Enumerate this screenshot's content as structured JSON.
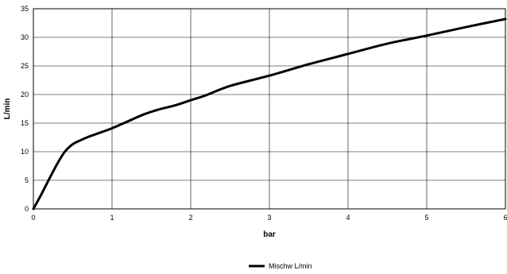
{
  "chart_data": {
    "type": "line",
    "title": "",
    "xlabel": "bar",
    "ylabel": "L/min",
    "xlim": [
      0,
      6
    ],
    "ylim": [
      0,
      35
    ],
    "xticks": [
      0,
      1,
      2,
      3,
      4,
      5,
      6
    ],
    "yticks": [
      0,
      5,
      10,
      15,
      20,
      25,
      30,
      35
    ],
    "grid": true,
    "legend_position": "bottom-center",
    "series": [
      {
        "name": "Mischw L/min",
        "color": "#000000",
        "x": [
          0,
          0.1,
          0.2,
          0.3,
          0.4,
          0.5,
          0.6,
          0.7,
          0.8,
          1.0,
          1.2,
          1.4,
          1.6,
          1.8,
          2.0,
          2.2,
          2.5,
          3.0,
          3.5,
          4.0,
          4.5,
          5.0,
          5.5,
          6.0
        ],
        "y": [
          0,
          2.5,
          5.2,
          7.8,
          10.0,
          11.3,
          12.0,
          12.6,
          13.1,
          14.1,
          15.3,
          16.5,
          17.4,
          18.1,
          19.0,
          19.9,
          21.5,
          23.3,
          25.3,
          27.1,
          28.9,
          30.3,
          31.8,
          33.2
        ]
      }
    ]
  }
}
